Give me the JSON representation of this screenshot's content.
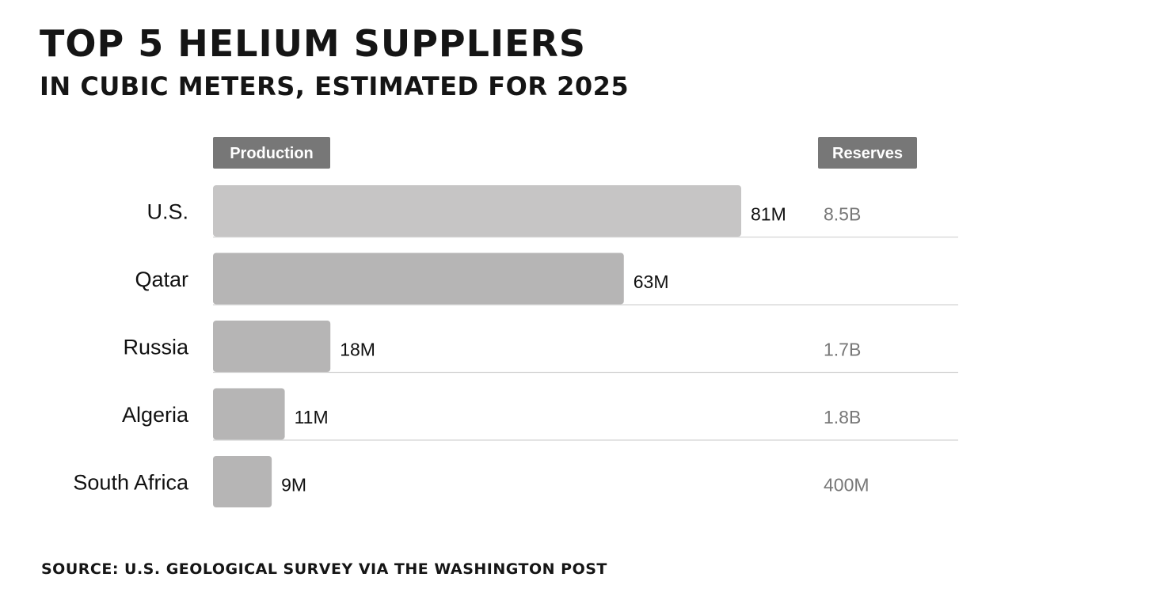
{
  "chart_data": {
    "type": "bar",
    "orientation": "horizontal",
    "title": "TOP 5 HELIUM SUPPLIERS",
    "subtitle": "IN CUBIC METERS, ESTIMATED FOR 2025",
    "source": "SOURCE: U.S. GEOLOGICAL SURVEY VIA THE WASHINGTON POST",
    "production_header": "Production",
    "reserves_header": "Reserves",
    "categories": [
      "U.S.",
      "Qatar",
      "Russia",
      "Algeria",
      "South Africa"
    ],
    "series": [
      {
        "name": "Production",
        "values": [
          81000000,
          63000000,
          18000000,
          11000000,
          9000000
        ],
        "labels": [
          "81M",
          "63M",
          "18M",
          "11M",
          "9M"
        ]
      },
      {
        "name": "Reserves",
        "values": [
          8500000000,
          null,
          1700000000,
          1800000000,
          400000000
        ],
        "labels": [
          "8.5B",
          "",
          "1.7B",
          "1.8B",
          "400M"
        ]
      }
    ],
    "xlim": [
      0,
      81000000
    ],
    "grid": false,
    "colors": {
      "first_bar": "#c6c5c5",
      "bar": "#b6b5b5",
      "header_bg": "#777777",
      "separator": "#d4d4d4",
      "reserve_text": "#777777"
    }
  }
}
